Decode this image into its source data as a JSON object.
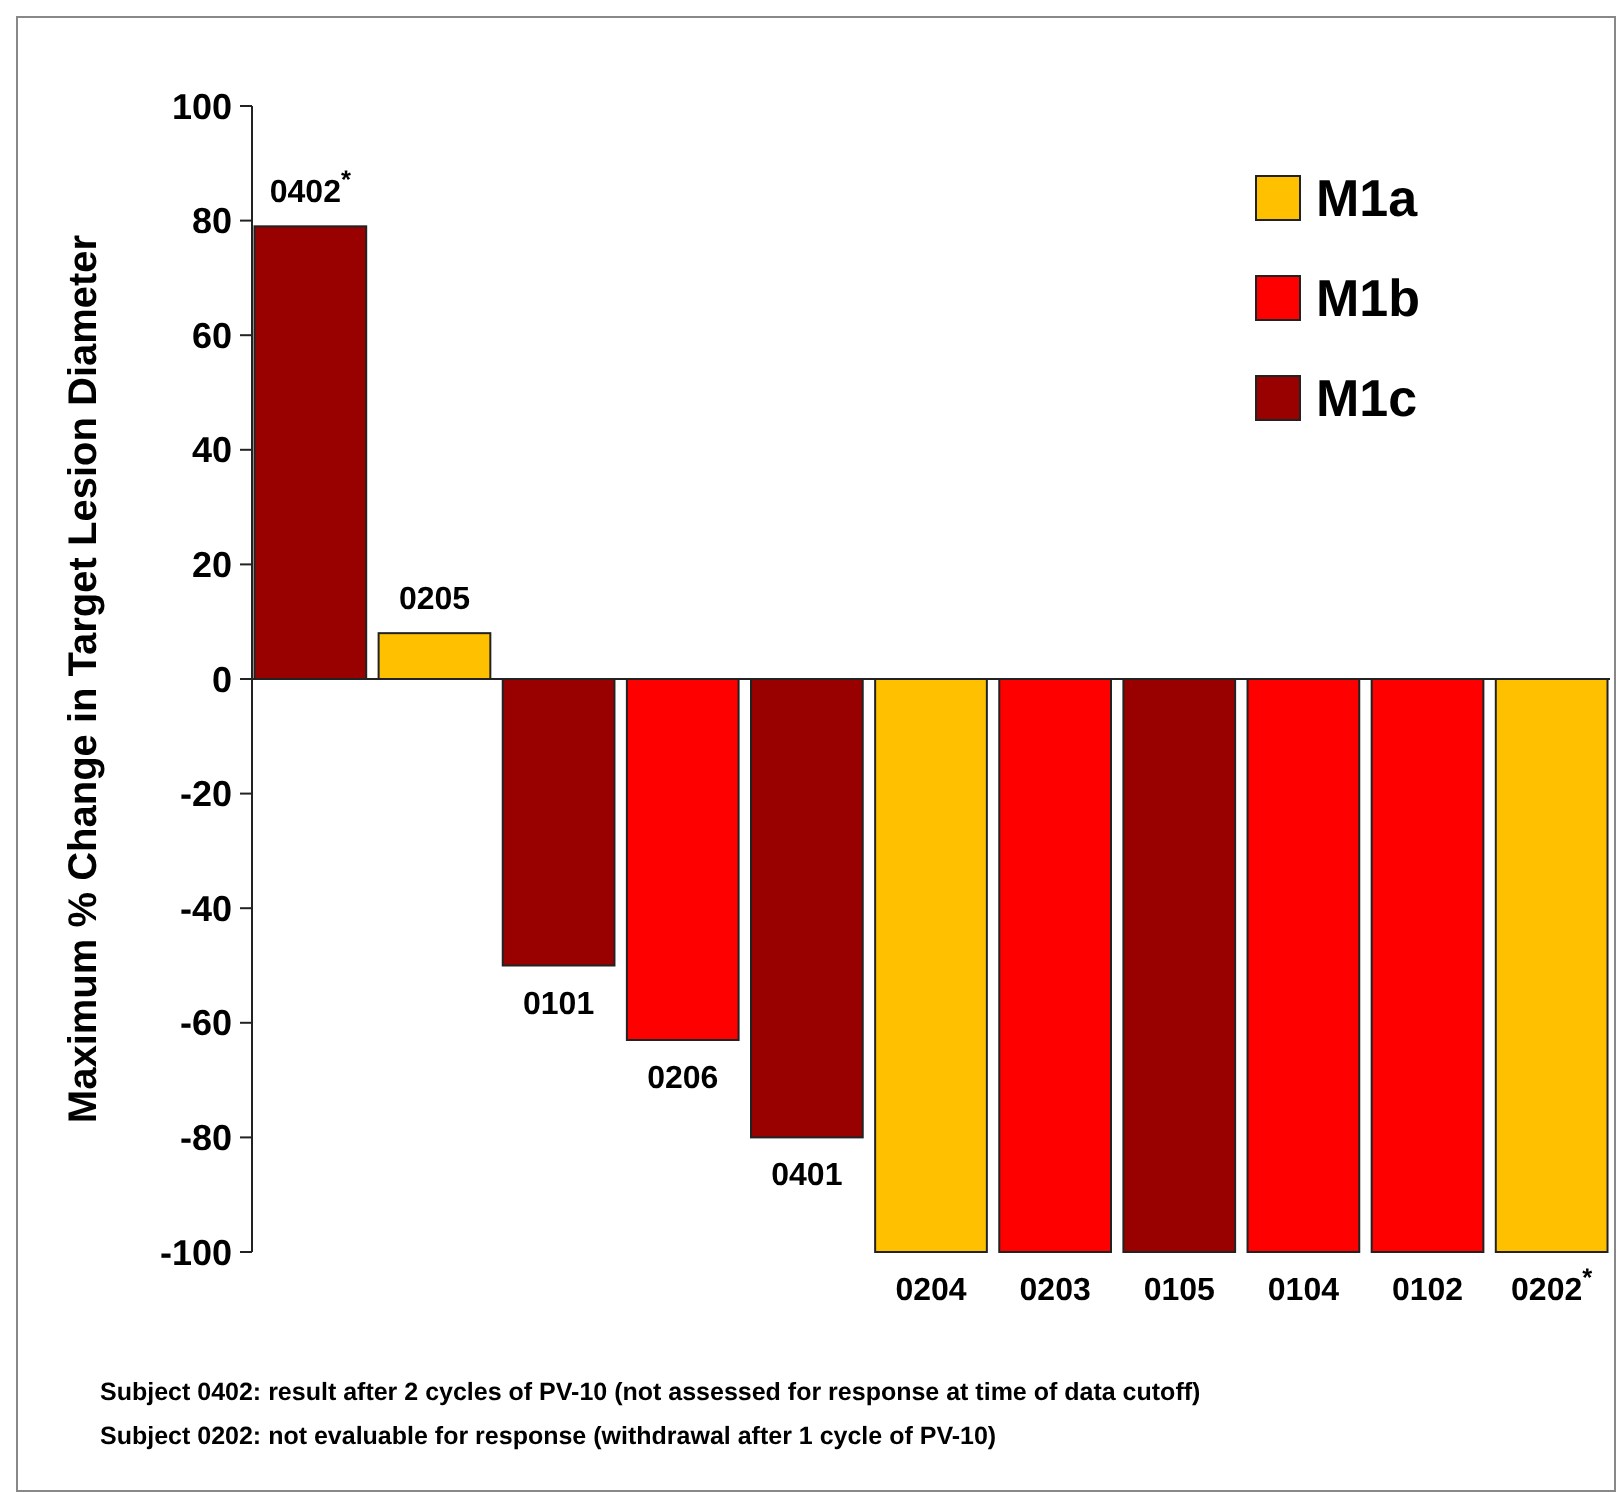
{
  "chart_data": {
    "type": "bar",
    "ylabel": "Maximum % Change in Target Lesion Diameter",
    "categories": [
      "0402$^{*}$",
      "0205",
      "0101",
      "0206",
      "0401",
      "0204",
      "0203",
      "0105",
      "0104",
      "0102",
      "0202$^{*}$"
    ],
    "series": [
      {
        "name": "M1a",
        "color": "#ffc000",
        "values": [
          null,
          8,
          null,
          null,
          null,
          -100,
          null,
          null,
          null,
          null,
          -100
        ]
      },
      {
        "name": "M1b",
        "color": "#ff0000",
        "values": [
          null,
          null,
          null,
          -63,
          null,
          null,
          -100,
          null,
          -100,
          -100,
          null
        ]
      },
      {
        "name": "M1c",
        "color": "#990000",
        "values": [
          79,
          null,
          -50,
          null,
          -80,
          null,
          null,
          -100,
          null,
          null,
          null
        ]
      }
    ],
    "ylim": [
      -100,
      100
    ],
    "yticks": [
      -100,
      -80,
      -60,
      -40,
      -20,
      0,
      20,
      40,
      60,
      80,
      100
    ],
    "legend": "top right",
    "annotations": [
      "Subject 0402: result after 2 cycles of PV-10  (not assessed for response at time of data cutoff)",
      "Subject 0202: not evaluable for response (withdrawal after 1 cycle of PV-10)"
    ]
  }
}
